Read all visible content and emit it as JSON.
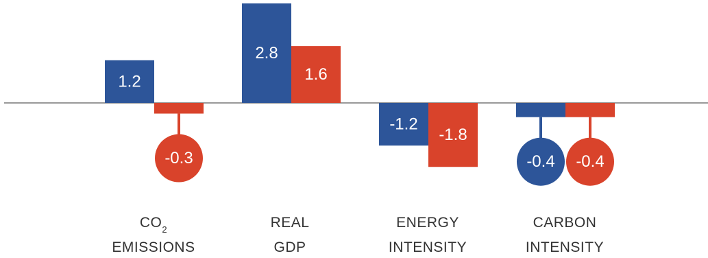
{
  "chart_data": {
    "type": "bar",
    "categories": [
      {
        "line1": "CO",
        "line1_sub": "2",
        "line2": "EMISSIONS"
      },
      {
        "line1": "REAL",
        "line2": "GDP"
      },
      {
        "line1": "ENERGY",
        "line2": "INTENSITY"
      },
      {
        "line1": "CARBON",
        "line2": "INTENSITY"
      }
    ],
    "series": [
      {
        "color": "#2d5599",
        "values": [
          1.2,
          2.8,
          -1.2,
          -0.4
        ],
        "labels": [
          "1.2",
          "2.8",
          "-1.2",
          "-0.4"
        ]
      },
      {
        "color": "#d9432b",
        "values": [
          -0.3,
          1.6,
          -1.8,
          -0.4
        ],
        "labels": [
          "-0.3",
          "1.6",
          "-1.8",
          "-0.4"
        ]
      }
    ],
    "grid": false,
    "legend": "none",
    "baseline_color": "#999999"
  }
}
